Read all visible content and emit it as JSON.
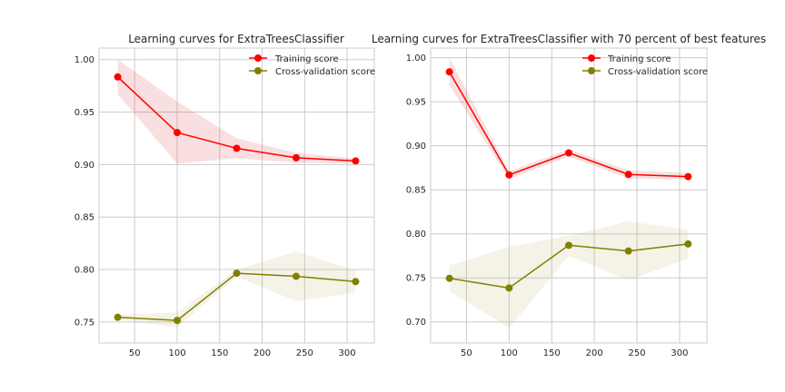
{
  "chart_data": [
    {
      "type": "line",
      "title": "Learning curves for ExtraTreesClassifier",
      "xlabel": "",
      "ylabel": "",
      "x": [
        30,
        100,
        170,
        240,
        310
      ],
      "xlim": [
        8,
        332
      ],
      "ylim": [
        0.73,
        1.011
      ],
      "xticks": [
        50,
        100,
        150,
        200,
        250,
        300
      ],
      "yticks": [
        0.75,
        0.8,
        0.85,
        0.9,
        0.95,
        1.0
      ],
      "ytick_labels": [
        "0.75",
        "0.80",
        "0.85",
        "0.90",
        "0.95",
        "1.00"
      ],
      "grid": true,
      "legend_position": "top-right",
      "series": [
        {
          "name": "Training score",
          "color": "#ff0000",
          "band_color": "#d62728",
          "values": [
            0.9835,
            0.9305,
            0.9155,
            0.9065,
            0.9035
          ],
          "band_low": [
            0.967,
            0.901,
            0.906,
            0.902,
            0.901
          ],
          "band_high": [
            1.0,
            0.96,
            0.925,
            0.911,
            0.906
          ]
        },
        {
          "name": "Cross-validation score",
          "color": "#808000",
          "band_color": "#bcaa66",
          "values": [
            0.7545,
            0.7515,
            0.7965,
            0.7935,
            0.7885
          ],
          "band_low": [
            0.752,
            0.745,
            0.793,
            0.77,
            0.778
          ],
          "band_high": [
            0.757,
            0.759,
            0.8,
            0.817,
            0.799
          ]
        }
      ]
    },
    {
      "type": "line",
      "title": "Learning curves for ExtraTreesClassifier with 70 percent of best features",
      "xlabel": "",
      "ylabel": "",
      "x": [
        30,
        100,
        170,
        240,
        310
      ],
      "xlim": [
        8,
        332
      ],
      "ylim": [
        0.676,
        1.011
      ],
      "xticks": [
        50,
        100,
        150,
        200,
        250,
        300
      ],
      "yticks": [
        0.7,
        0.75,
        0.8,
        0.85,
        0.9,
        0.95,
        1.0
      ],
      "ytick_labels": [
        "0.70",
        "0.75",
        "0.80",
        "0.85",
        "0.90",
        "0.95",
        "1.00"
      ],
      "grid": true,
      "legend_position": "top-right",
      "series": [
        {
          "name": "Training score",
          "color": "#ff0000",
          "band_color": "#d62728",
          "values": [
            0.984,
            0.867,
            0.892,
            0.8675,
            0.865
          ],
          "band_low": [
            0.969,
            0.862,
            0.888,
            0.863,
            0.862
          ],
          "band_high": [
            1.0,
            0.871,
            0.896,
            0.872,
            0.869
          ]
        },
        {
          "name": "Cross-validation score",
          "color": "#808000",
          "band_color": "#bcaa66",
          "values": [
            0.7495,
            0.7385,
            0.787,
            0.7805,
            0.7885
          ],
          "band_low": [
            0.735,
            0.693,
            0.775,
            0.747,
            0.772
          ],
          "band_high": [
            0.764,
            0.785,
            0.798,
            0.814,
            0.805
          ]
        }
      ]
    }
  ]
}
